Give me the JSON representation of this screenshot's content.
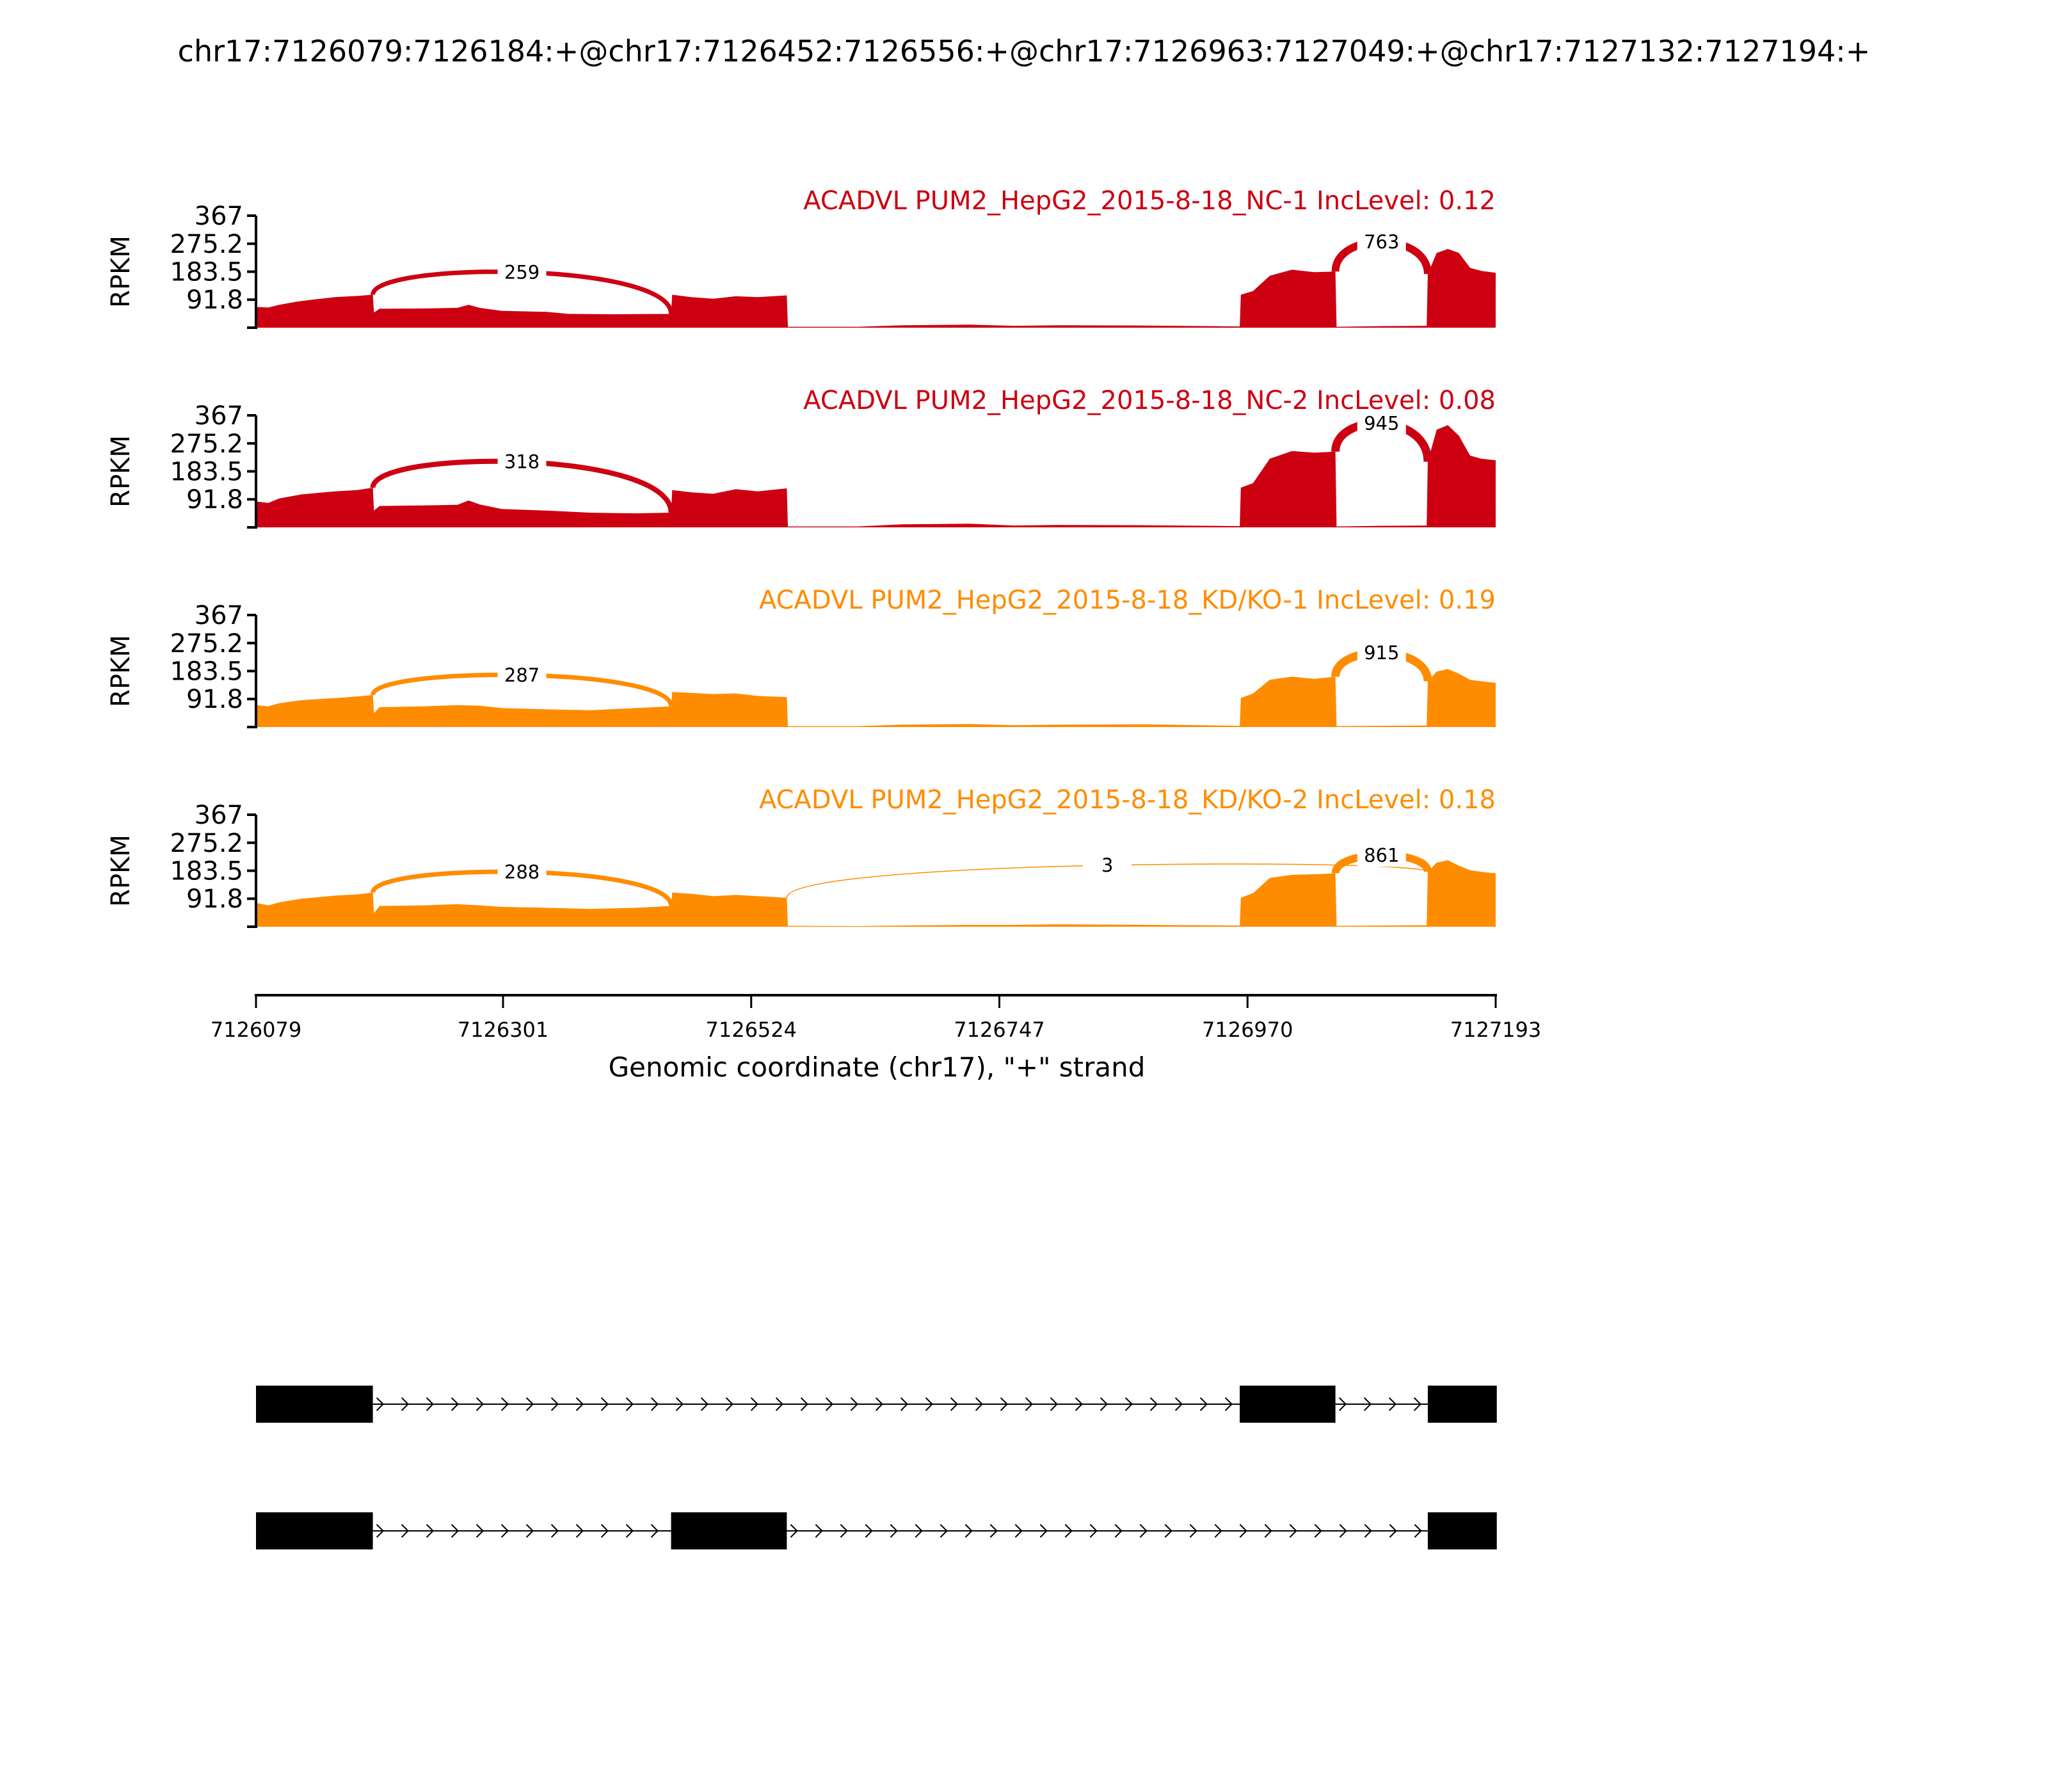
{
  "chart_data": {
    "type": "area",
    "title": "chr17:7126079:7126184:+@chr17:7126452:7126556:+@chr17:7126963:7127049:+@chr17:7127132:7127194:+",
    "xlabel": "Genomic coordinate (chr17), \"+\" strand",
    "ylabel": "RPKM",
    "xlim": [
      7126079,
      7127193
    ],
    "ylim": [
      0,
      367
    ],
    "yticks": [
      "367",
      "275.2",
      "183.5",
      "91.8"
    ],
    "ytick_values": [
      367,
      275.2,
      183.5,
      91.8,
      0
    ],
    "xticks": [
      "7126079",
      "7126301",
      "7126524",
      "7126747",
      "7126970",
      "7127193"
    ],
    "xtick_values": [
      7126079,
      7126301,
      7126524,
      7126747,
      7126970,
      7127193
    ],
    "colors": {
      "NC": "#cc0011",
      "KD": "#ff8c00"
    },
    "panels": [
      {
        "label": "ACADVL PUM2_HepG2_2015-8-18_NC-1 IncLevel: 0.12",
        "color": "#cc0011",
        "coverage": [
          [
            7126079,
            68
          ],
          [
            7126090,
            66
          ],
          [
            7126100,
            75
          ],
          [
            7126115,
            85
          ],
          [
            7126130,
            92
          ],
          [
            7126150,
            100
          ],
          [
            7126170,
            104
          ],
          [
            7126184,
            108
          ],
          [
            7126185,
            50
          ],
          [
            7126190,
            62
          ],
          [
            7126230,
            63
          ],
          [
            7126260,
            65
          ],
          [
            7126270,
            75
          ],
          [
            7126280,
            65
          ],
          [
            7126300,
            55
          ],
          [
            7126340,
            52
          ],
          [
            7126360,
            45
          ],
          [
            7126400,
            44
          ],
          [
            7126452,
            45
          ],
          [
            7126453,
            108
          ],
          [
            7126470,
            100
          ],
          [
            7126490,
            95
          ],
          [
            7126510,
            103
          ],
          [
            7126530,
            100
          ],
          [
            7126556,
            106
          ],
          [
            7126557,
            3
          ],
          [
            7126620,
            3
          ],
          [
            7126660,
            8
          ],
          [
            7126720,
            10
          ],
          [
            7126760,
            6
          ],
          [
            7126800,
            8
          ],
          [
            7126880,
            7
          ],
          [
            7126963,
            4
          ],
          [
            7126964,
            108
          ],
          [
            7126975,
            120
          ],
          [
            7126990,
            170
          ],
          [
            7127010,
            190
          ],
          [
            7127030,
            182
          ],
          [
            7127049,
            184
          ],
          [
            7127050,
            3
          ],
          [
            7127090,
            5
          ],
          [
            7127131,
            6
          ],
          [
            7127132,
            176
          ],
          [
            7127140,
            245
          ],
          [
            7127150,
            258
          ],
          [
            7127160,
            245
          ],
          [
            7127170,
            196
          ],
          [
            7127180,
            186
          ],
          [
            7127193,
            180
          ]
        ],
        "junctions": [
          {
            "start": 7126184,
            "end": 7126452,
            "count": "259",
            "apex": 190,
            "width": 7
          },
          {
            "start": 7127049,
            "end": 7127132,
            "count": "763",
            "apex": 282,
            "width": 12
          }
        ]
      },
      {
        "label": "ACADVL PUM2_HepG2_2015-8-18_NC-2 IncLevel: 0.08",
        "color": "#cc0011",
        "coverage": [
          [
            7126079,
            85
          ],
          [
            7126090,
            80
          ],
          [
            7126100,
            95
          ],
          [
            7126120,
            108
          ],
          [
            7126150,
            118
          ],
          [
            7126170,
            122
          ],
          [
            7126184,
            130
          ],
          [
            7126185,
            55
          ],
          [
            7126190,
            70
          ],
          [
            7126230,
            72
          ],
          [
            7126260,
            74
          ],
          [
            7126270,
            88
          ],
          [
            7126280,
            75
          ],
          [
            7126300,
            60
          ],
          [
            7126340,
            55
          ],
          [
            7126380,
            48
          ],
          [
            7126420,
            46
          ],
          [
            7126452,
            48
          ],
          [
            7126453,
            122
          ],
          [
            7126470,
            115
          ],
          [
            7126490,
            110
          ],
          [
            7126510,
            125
          ],
          [
            7126530,
            118
          ],
          [
            7126556,
            128
          ],
          [
            7126557,
            3
          ],
          [
            7126620,
            3
          ],
          [
            7126660,
            10
          ],
          [
            7126720,
            12
          ],
          [
            7126760,
            6
          ],
          [
            7126800,
            8
          ],
          [
            7126880,
            7
          ],
          [
            7126963,
            4
          ],
          [
            7126964,
            130
          ],
          [
            7126975,
            145
          ],
          [
            7126990,
            225
          ],
          [
            7127010,
            250
          ],
          [
            7127030,
            245
          ],
          [
            7127049,
            248
          ],
          [
            7127050,
            3
          ],
          [
            7127090,
            5
          ],
          [
            7127131,
            6
          ],
          [
            7127132,
            215
          ],
          [
            7127140,
            320
          ],
          [
            7127150,
            335
          ],
          [
            7127160,
            300
          ],
          [
            7127170,
            235
          ],
          [
            7127180,
            225
          ],
          [
            7127193,
            220
          ]
        ],
        "junctions": [
          {
            "start": 7126184,
            "end": 7126452,
            "count": "318",
            "apex": 225,
            "width": 8
          },
          {
            "start": 7127049,
            "end": 7127132,
            "count": "945",
            "apex": 345,
            "width": 13
          }
        ]
      },
      {
        "label": "ACADVL PUM2_HepG2_2015-8-18_KD/KO-1 IncLevel: 0.19",
        "color": "#ff8c00",
        "coverage": [
          [
            7126079,
            72
          ],
          [
            7126090,
            68
          ],
          [
            7126100,
            78
          ],
          [
            7126120,
            88
          ],
          [
            7126150,
            95
          ],
          [
            7126170,
            100
          ],
          [
            7126184,
            105
          ],
          [
            7126185,
            45
          ],
          [
            7126190,
            65
          ],
          [
            7126230,
            68
          ],
          [
            7126260,
            72
          ],
          [
            7126280,
            70
          ],
          [
            7126300,
            62
          ],
          [
            7126340,
            58
          ],
          [
            7126380,
            55
          ],
          [
            7126420,
            62
          ],
          [
            7126452,
            68
          ],
          [
            7126453,
            115
          ],
          [
            7126470,
            112
          ],
          [
            7126490,
            108
          ],
          [
            7126510,
            110
          ],
          [
            7126530,
            102
          ],
          [
            7126556,
            98
          ],
          [
            7126557,
            3
          ],
          [
            7126620,
            3
          ],
          [
            7126660,
            8
          ],
          [
            7126720,
            10
          ],
          [
            7126760,
            6
          ],
          [
            7126800,
            8
          ],
          [
            7126880,
            9
          ],
          [
            7126963,
            4
          ],
          [
            7126964,
            95
          ],
          [
            7126975,
            110
          ],
          [
            7126990,
            155
          ],
          [
            7127010,
            165
          ],
          [
            7127030,
            158
          ],
          [
            7127049,
            165
          ],
          [
            7127050,
            3
          ],
          [
            7127090,
            4
          ],
          [
            7127131,
            5
          ],
          [
            7127132,
            150
          ],
          [
            7127140,
            182
          ],
          [
            7127150,
            190
          ],
          [
            7127160,
            175
          ],
          [
            7127170,
            155
          ],
          [
            7127180,
            150
          ],
          [
            7127193,
            145
          ]
        ],
        "junctions": [
          {
            "start": 7126184,
            "end": 7126452,
            "count": "287",
            "apex": 175,
            "width": 7
          },
          {
            "start": 7127049,
            "end": 7127132,
            "count": "915",
            "apex": 245,
            "width": 13
          }
        ]
      },
      {
        "label": "ACADVL PUM2_HepG2_2015-8-18_KD/KO-2 IncLevel: 0.18",
        "color": "#ff8c00",
        "coverage": [
          [
            7126079,
            78
          ],
          [
            7126090,
            70
          ],
          [
            7126100,
            80
          ],
          [
            7126120,
            92
          ],
          [
            7126150,
            102
          ],
          [
            7126170,
            106
          ],
          [
            7126184,
            112
          ],
          [
            7126185,
            45
          ],
          [
            7126190,
            68
          ],
          [
            7126230,
            70
          ],
          [
            7126260,
            74
          ],
          [
            7126280,
            70
          ],
          [
            7126300,
            65
          ],
          [
            7126340,
            62
          ],
          [
            7126380,
            58
          ],
          [
            7126420,
            62
          ],
          [
            7126452,
            68
          ],
          [
            7126453,
            112
          ],
          [
            7126470,
            108
          ],
          [
            7126490,
            100
          ],
          [
            7126510,
            104
          ],
          [
            7126530,
            100
          ],
          [
            7126556,
            95
          ],
          [
            7126557,
            3
          ],
          [
            7126620,
            2
          ],
          [
            7126660,
            4
          ],
          [
            7126720,
            6
          ],
          [
            7126760,
            6
          ],
          [
            7126800,
            8
          ],
          [
            7126880,
            6
          ],
          [
            7126963,
            4
          ],
          [
            7126964,
            95
          ],
          [
            7126975,
            110
          ],
          [
            7126990,
            160
          ],
          [
            7127010,
            170
          ],
          [
            7127030,
            172
          ],
          [
            7127049,
            175
          ],
          [
            7127050,
            3
          ],
          [
            7127090,
            4
          ],
          [
            7127131,
            5
          ],
          [
            7127132,
            180
          ],
          [
            7127140,
            210
          ],
          [
            7127150,
            218
          ],
          [
            7127160,
            200
          ],
          [
            7127170,
            185
          ],
          [
            7127180,
            180
          ],
          [
            7127193,
            175
          ]
        ],
        "junctions": [
          {
            "start": 7126184,
            "end": 7126452,
            "count": "288",
            "apex": 185,
            "width": 7
          },
          {
            "start": 7126556,
            "end": 7127132,
            "count": "3",
            "apex": 212,
            "width": 1.5
          },
          {
            "start": 7127049,
            "end": 7127132,
            "count": "861",
            "apex": 235,
            "width": 12
          }
        ]
      }
    ],
    "transcripts": [
      {
        "exons": [
          [
            7126079,
            7126184
          ],
          [
            7126963,
            7127049
          ],
          [
            7127132,
            7127194
          ]
        ]
      },
      {
        "exons": [
          [
            7126079,
            7126184
          ],
          [
            7126452,
            7126556
          ],
          [
            7127132,
            7127194
          ]
        ]
      }
    ]
  }
}
